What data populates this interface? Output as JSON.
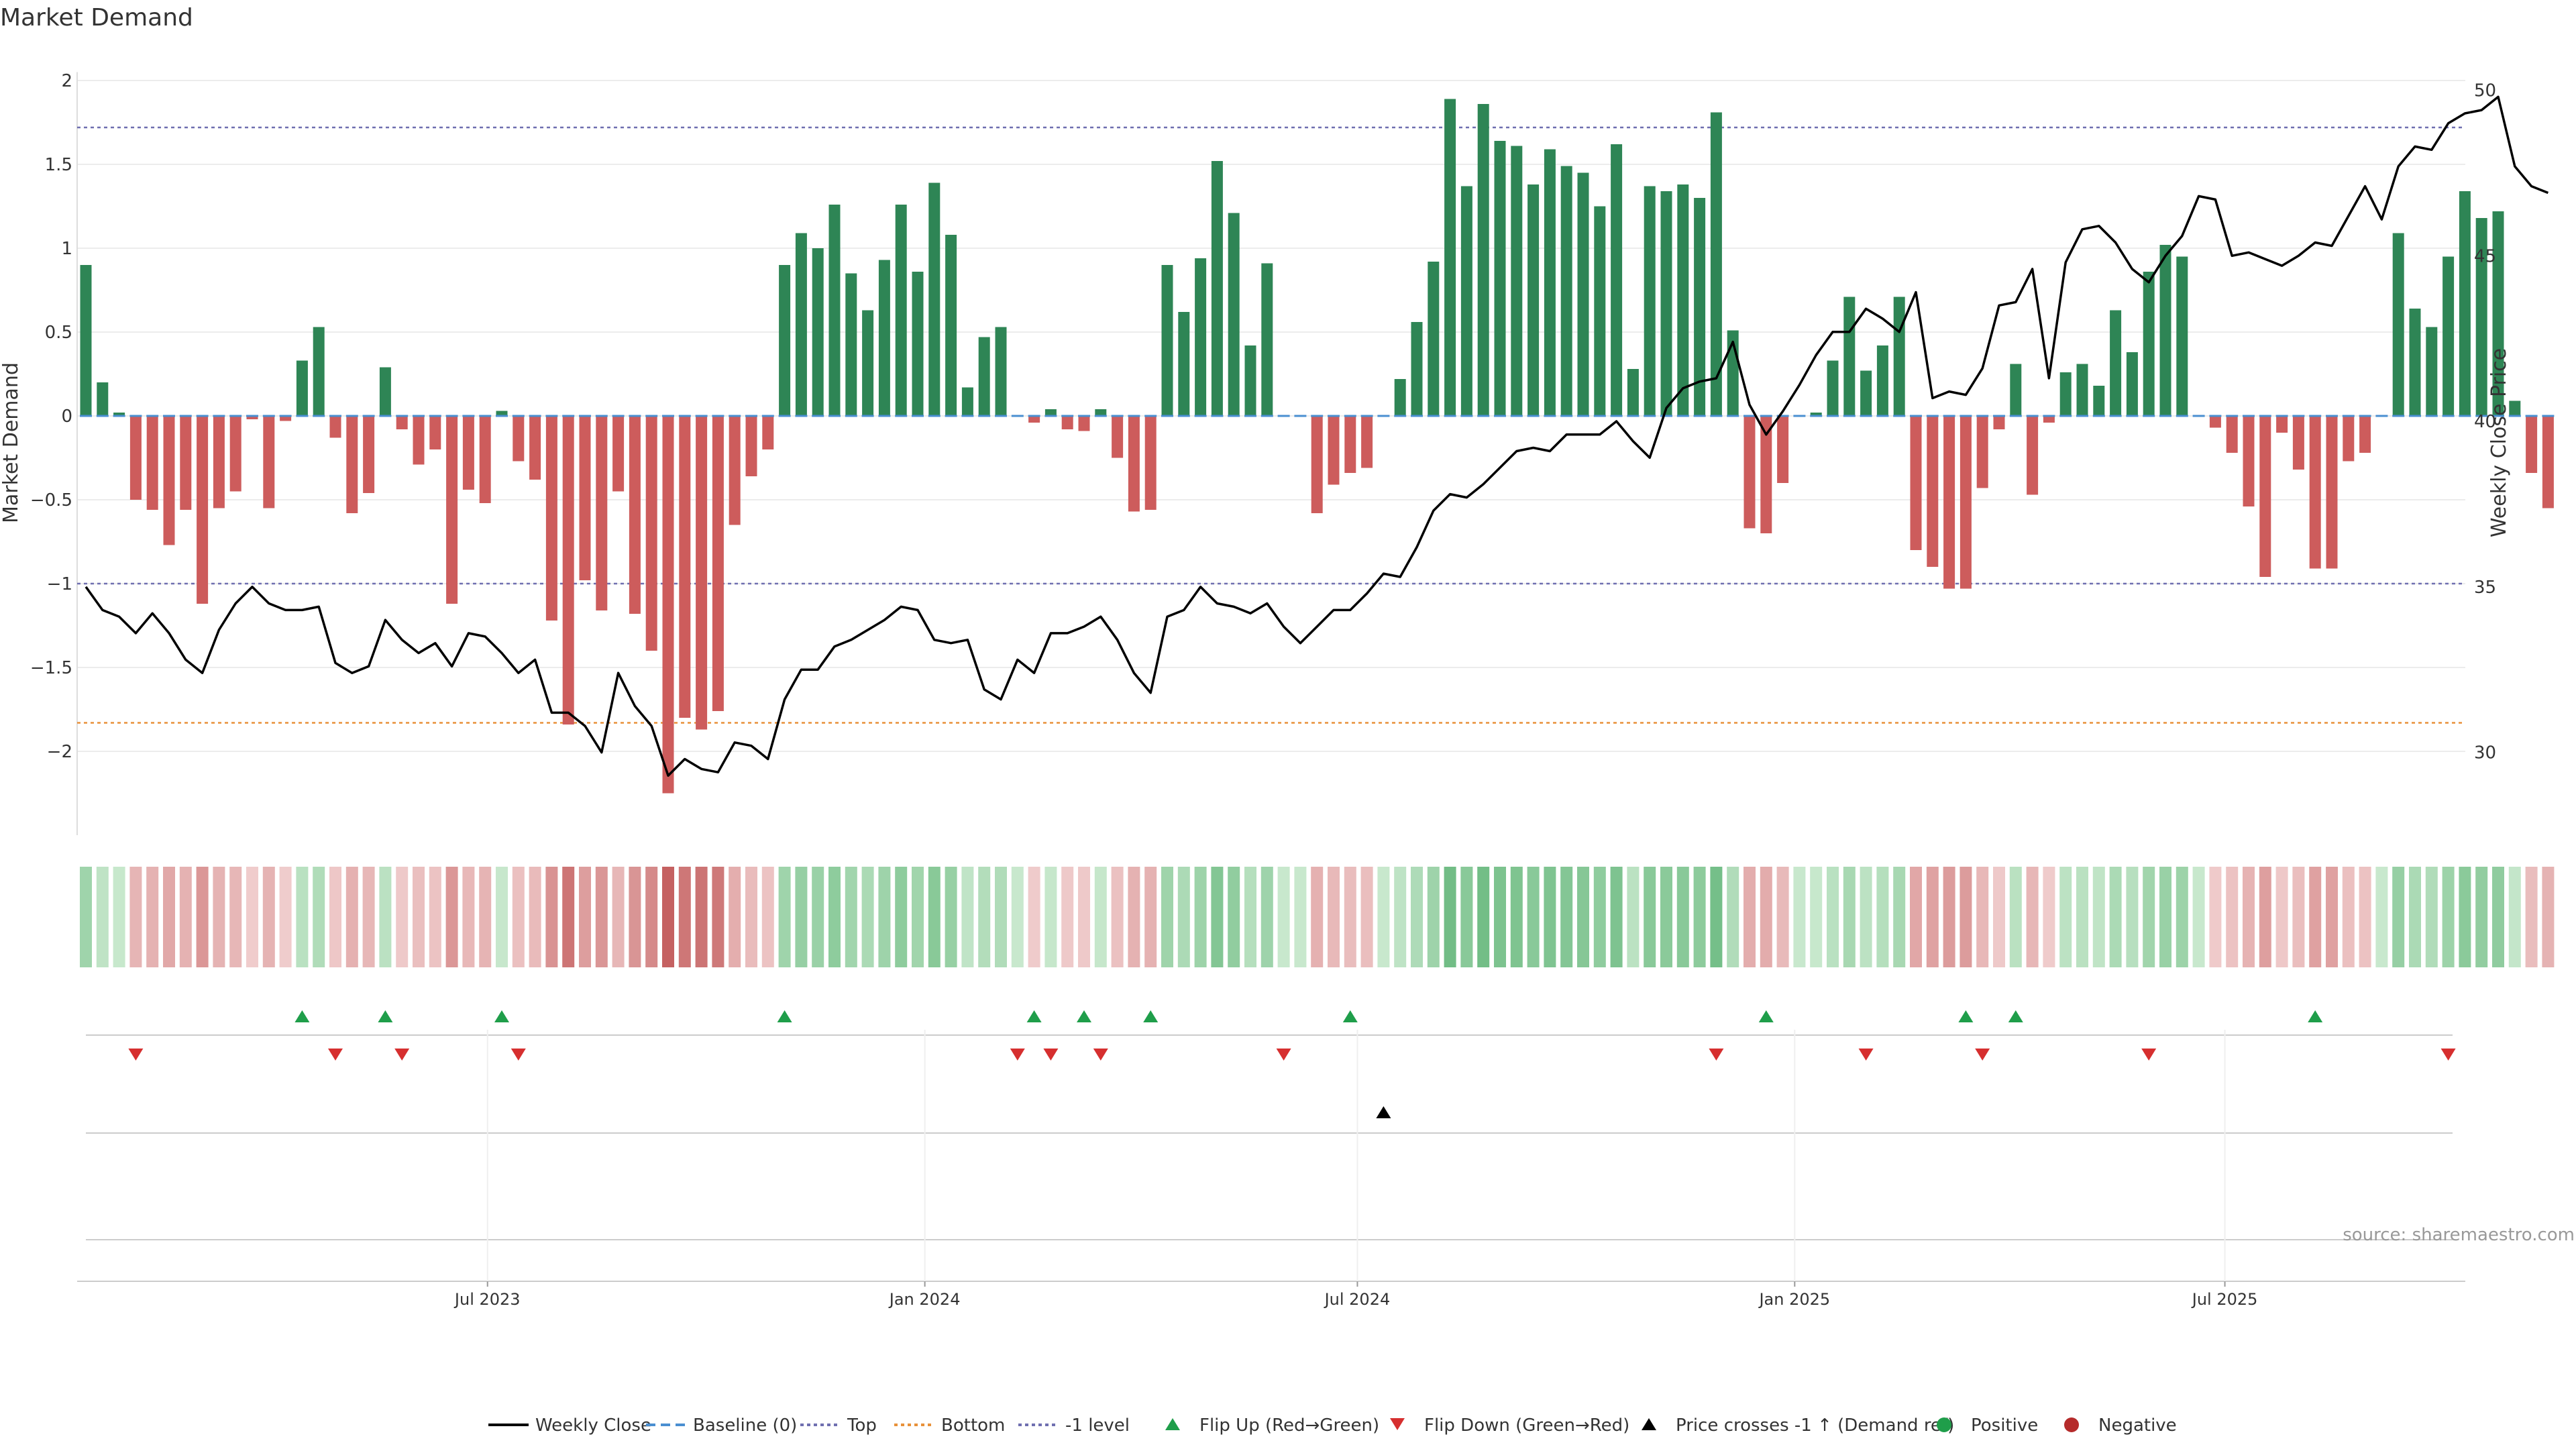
{
  "title": "Market Demand",
  "source_note": "source: sharemaestro.com",
  "colors": {
    "positive": "#2e8555",
    "negative": "#cd5c5c",
    "price": "#000000",
    "top": "#6f6fb0",
    "bottom": "#e8913a",
    "minus1": "#6f6fb0",
    "baseline": "#4a8fd1",
    "flip_up": "#1f9e4a",
    "flip_down": "#d62f2f",
    "cross": "#000000",
    "grid": "#ececec"
  },
  "legend": [
    {
      "label": "Weekly Close",
      "kind": "line",
      "color": "#000000",
      "dash": "solid"
    },
    {
      "label": "Baseline (0)",
      "kind": "line",
      "color": "#4a8fd1",
      "dash": "dash"
    },
    {
      "label": "Top",
      "kind": "line",
      "color": "#6f6fb0",
      "dash": "dot"
    },
    {
      "label": "Bottom",
      "kind": "line",
      "color": "#e8913a",
      "dash": "dot"
    },
    {
      "label": "-1 level",
      "kind": "line",
      "color": "#6f6fb0",
      "dash": "dot"
    },
    {
      "label": "Flip Up (Red→Green)",
      "kind": "tri-up",
      "color": "#1f9e4a"
    },
    {
      "label": "Flip Down (Green→Red)",
      "kind": "tri-down",
      "color": "#d62f2f"
    },
    {
      "label": "Price crosses -1 ↑ (Demand ref)",
      "kind": "tri-up",
      "color": "#000000"
    },
    {
      "label": "Positive",
      "kind": "dot",
      "color": "#1f9e4a"
    },
    {
      "label": "Negative",
      "kind": "dot",
      "color": "#b52b2b"
    }
  ],
  "chart_data": {
    "type": "bar",
    "title": "Market Demand",
    "x_unit": "week",
    "x_start_date": "2023-01-13",
    "x_tick_labels": [
      "Jul 2023",
      "Jan 2024",
      "Jul 2024",
      "Jan 2025",
      "Jul 2025"
    ],
    "x_tick_dates": [
      "2023-07-01",
      "2024-01-01",
      "2024-07-01",
      "2025-01-01",
      "2025-07-01"
    ],
    "left_axis": {
      "label": "Market Demand",
      "range": [
        -2.5,
        2.1
      ],
      "ticks": [
        2,
        1.5,
        1,
        0.5,
        0,
        -0.5,
        -1,
        -1.5,
        -2
      ],
      "tick_labels": [
        "2",
        "1.5",
        "1",
        "0.5",
        "0",
        "−0.5",
        "−1",
        "−1.5",
        "−2"
      ]
    },
    "right_axis": {
      "label": "Weekly Close Price",
      "range": [
        27.5,
        50.8
      ],
      "ticks": [
        50,
        45,
        40,
        35,
        30
      ],
      "tick_labels": [
        "50",
        "45",
        "40",
        "35",
        "30"
      ]
    },
    "reference_lines": {
      "top": 1.72,
      "bottom": -1.83,
      "minus1": -1.0,
      "baseline": 0
    },
    "series": [
      {
        "name": "Market Demand",
        "kind": "bar",
        "values": [
          0.9,
          0.2,
          0.02,
          -0.5,
          -0.56,
          -0.77,
          -0.56,
          -1.12,
          -0.55,
          -0.45,
          -0.02,
          -0.55,
          -0.03,
          0.33,
          0.53,
          -0.13,
          -0.58,
          -0.46,
          0.29,
          -0.08,
          -0.29,
          -0.2,
          -1.12,
          -0.44,
          -0.52,
          0.03,
          -0.27,
          -0.38,
          -1.22,
          -1.84,
          -0.98,
          -1.16,
          -0.45,
          -1.18,
          -1.4,
          -2.25,
          -1.8,
          -1.87,
          -1.76,
          -0.65,
          -0.36,
          -0.2,
          0.9,
          1.09,
          1.0,
          1.26,
          0.85,
          0.63,
          0.93,
          1.26,
          0.86,
          1.39,
          1.08,
          0.17,
          0.47,
          0.53,
          0.0,
          -0.04,
          0.04,
          -0.08,
          -0.09,
          0.04,
          -0.25,
          -0.57,
          -0.56,
          0.9,
          0.62,
          0.94,
          1.52,
          1.21,
          0.42,
          0.91,
          0.0,
          0.0,
          -0.58,
          -0.41,
          -0.34,
          -0.31,
          0.0,
          0.22,
          0.56,
          0.92,
          1.89,
          1.37,
          1.86,
          1.64,
          1.61,
          1.38,
          1.59,
          1.49,
          1.45,
          1.25,
          1.62,
          0.28,
          1.37,
          1.34,
          1.38,
          1.3,
          1.81,
          0.51,
          -0.67,
          -0.7,
          -0.4,
          0.0,
          0.02,
          0.33,
          0.71,
          0.27,
          0.42,
          0.71,
          -0.8,
          -0.9,
          -1.03,
          -1.03,
          -0.43,
          -0.08,
          0.31,
          -0.47,
          -0.04,
          0.26,
          0.31,
          0.18,
          0.63,
          0.38,
          0.86,
          1.02,
          0.95,
          0.0,
          -0.07,
          -0.22,
          -0.54,
          -0.96,
          -0.1,
          -0.32,
          -0.91,
          -0.91,
          -0.27,
          -0.22,
          0.0,
          1.09,
          0.64,
          0.53,
          0.95,
          1.34,
          1.18,
          1.22,
          0.09,
          -0.34,
          -0.55
        ]
      },
      {
        "name": "Weekly Close",
        "kind": "line",
        "values": [
          35,
          34.3,
          34.1,
          33.6,
          34.2,
          33.6,
          32.8,
          32.4,
          33.7,
          34.5,
          35,
          34.5,
          34.3,
          34.3,
          34.4,
          32.7,
          32.4,
          32.6,
          34,
          33.4,
          33,
          33.3,
          32.6,
          33.6,
          33.5,
          33,
          32.4,
          32.8,
          31.2,
          31.2,
          30.8,
          30,
          32.4,
          31.4,
          30.8,
          29.3,
          29.8,
          29.5,
          29.4,
          30.3,
          30.2,
          29.8,
          31.6,
          32.5,
          32.5,
          33.2,
          33.4,
          33.7,
          34,
          34.4,
          34.3,
          33.4,
          33.3,
          33.4,
          31.9,
          31.6,
          32.8,
          32.4,
          33.6,
          33.6,
          33.8,
          34.1,
          33.4,
          32.4,
          31.8,
          34.1,
          34.3,
          35,
          34.5,
          34.4,
          34.2,
          34.5,
          33.8,
          33.3,
          33.8,
          34.3,
          34.3,
          34.8,
          35.4,
          35.3,
          36.2,
          37.3,
          37.8,
          37.7,
          38.1,
          38.6,
          39.1,
          39.2,
          39.1,
          39.6,
          39.6,
          39.6,
          40,
          39.4,
          38.9,
          40.4,
          41,
          41.2,
          41.3,
          42.4,
          40.5,
          39.6,
          40.3,
          41.1,
          42.0,
          42.7,
          42.7,
          43.4,
          43.1,
          42.7,
          43.9,
          40.7,
          40.9,
          40.8,
          41.6,
          43.5,
          43.6,
          44.6,
          41.3,
          44.8,
          45.8,
          45.9,
          45.4,
          44.6,
          44.2,
          45,
          45.6,
          46.8,
          46.7,
          45,
          45.1,
          44.9,
          44.7,
          45,
          45.4,
          45.3,
          46.2,
          47.1,
          46.1,
          47.7,
          48.3,
          48.2,
          49,
          49.3,
          49.4,
          49.8,
          47.7,
          47.1,
          46.9
        ]
      }
    ],
    "flip_up_weeks": [
      13,
      18,
      25,
      42,
      57,
      60,
      64,
      76,
      101,
      113,
      116,
      134
    ],
    "flip_down_weeks": [
      3,
      15,
      19,
      26,
      56,
      58,
      61,
      72,
      98,
      107,
      114,
      124,
      142
    ],
    "price_cross_minus1_up_weeks": [
      78
    ],
    "grid": true,
    "legend_position": "bottom-center"
  }
}
